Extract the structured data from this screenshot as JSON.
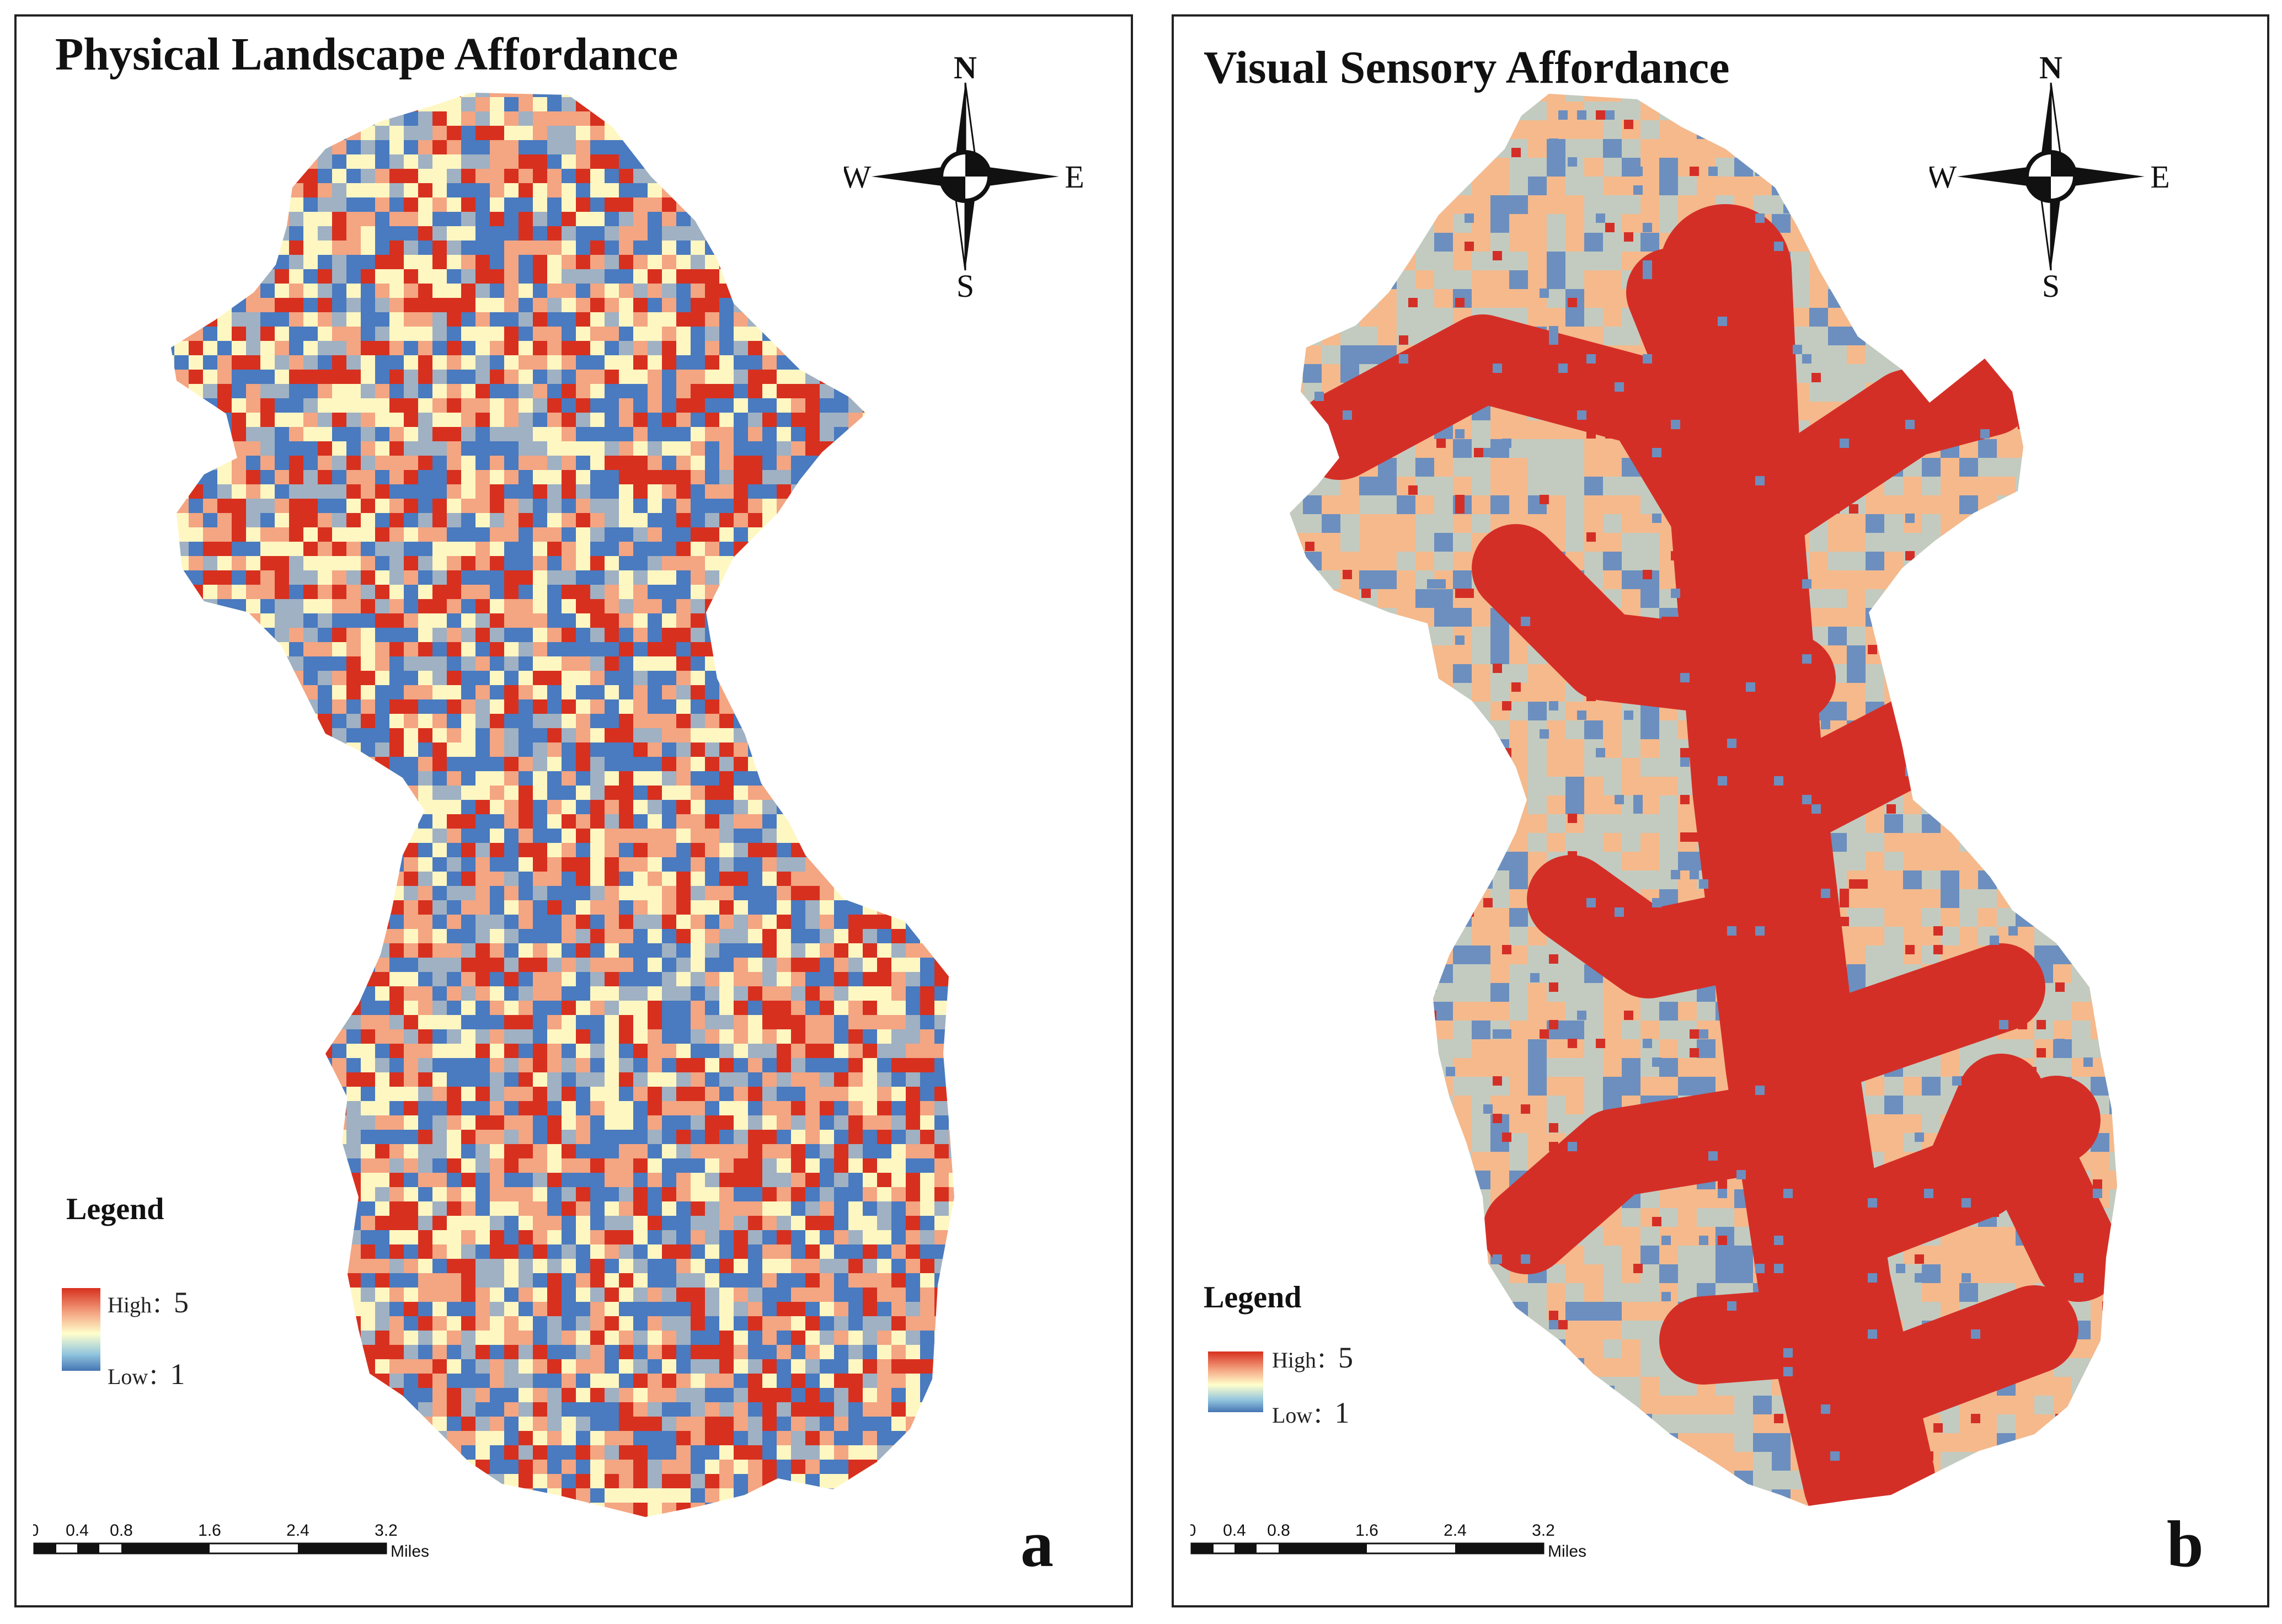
{
  "panels": [
    {
      "id": "a",
      "title": "Physical Landscape Affordance",
      "letter": "a",
      "legend": {
        "title": "Legend",
        "high_label": "High：",
        "high_value": "5",
        "low_label": "Low：",
        "low_value": "1"
      },
      "compass": {
        "n": "N",
        "s": "S",
        "e": "E",
        "w": "W"
      },
      "scale": {
        "ticks": [
          "0",
          "0.4",
          "0.8",
          "1.6",
          "2.4",
          "3.2"
        ],
        "unit": "Miles"
      },
      "palette": [
        "#d7301f",
        "#f4a582",
        "#fff7c2",
        "#9fb1c3",
        "#4a7abf"
      ],
      "palette_weights": [
        0.18,
        0.22,
        0.2,
        0.14,
        0.26
      ],
      "pattern": "speckled"
    },
    {
      "id": "b",
      "title": "Visual Sensory Affordance",
      "letter": "b",
      "legend": {
        "title": "Legend",
        "high_label": "High：",
        "high_value": "5",
        "low_label": "Low：",
        "low_value": "1"
      },
      "compass": {
        "n": "N",
        "s": "S",
        "e": "E",
        "w": "W"
      },
      "scale": {
        "ticks": [
          "0",
          "0.4",
          "0.8",
          "1.6",
          "2.4",
          "3.2"
        ],
        "unit": "Miles"
      },
      "palette": [
        "#d42f27",
        "#f5b98c",
        "#c3cbc0",
        "#6c8fbf"
      ],
      "pattern": "valleys"
    }
  ],
  "colors": {
    "border": "#222222",
    "background": "#ffffff"
  }
}
